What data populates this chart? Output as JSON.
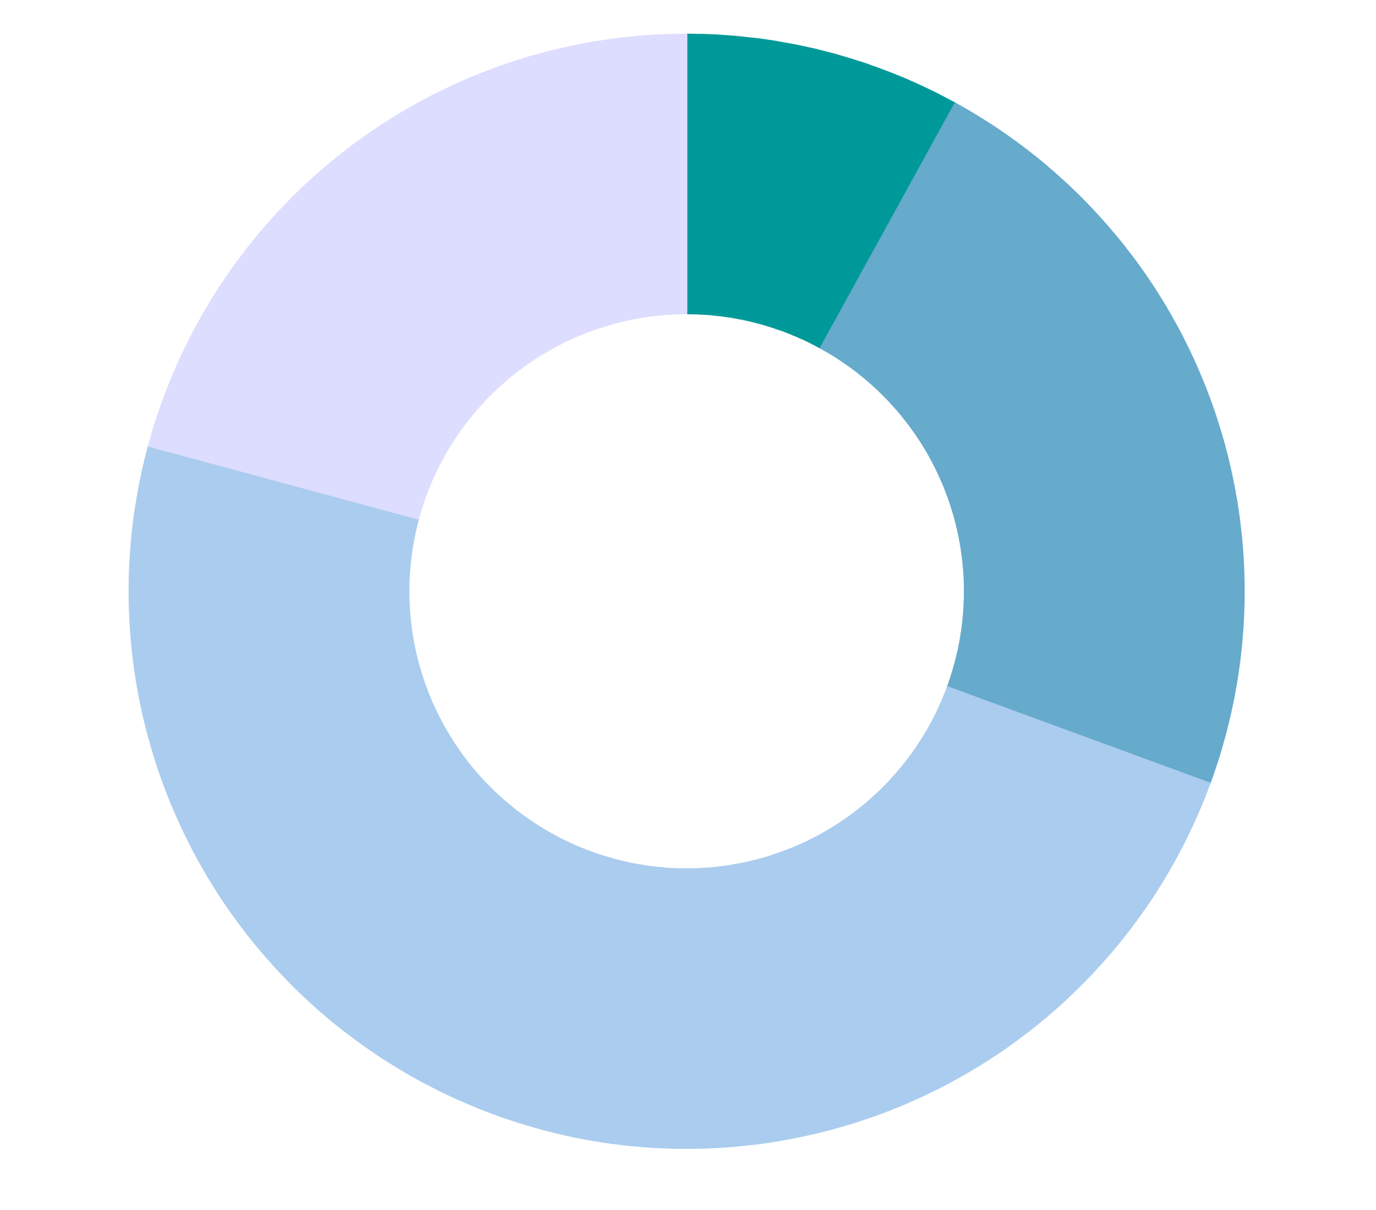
{
  "chart_data": {
    "type": "donut",
    "categories": [
      null,
      null,
      null,
      null
    ],
    "values": [
      8,
      22.6,
      48.6,
      20.8
    ],
    "colors": [
      "#009999",
      "#66aacc",
      "#aaccee",
      "#ddddff"
    ]
  }
}
